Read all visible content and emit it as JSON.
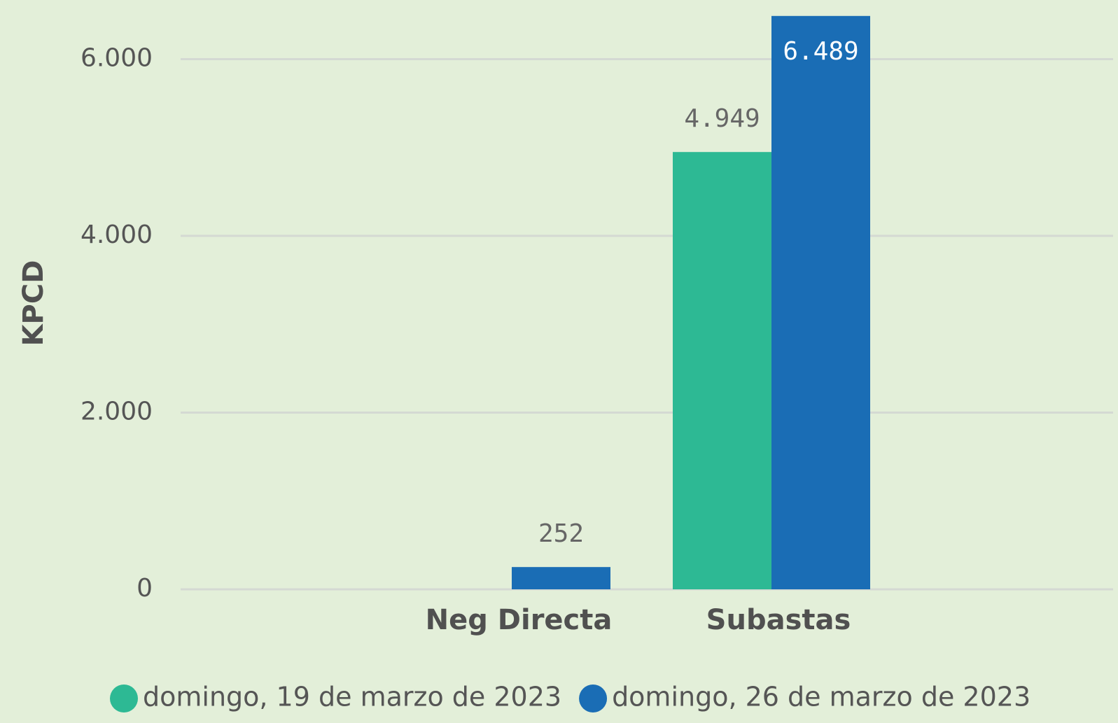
{
  "chart_data": {
    "type": "bar",
    "y_label": "KPCD",
    "categories": [
      "Neg Directa",
      "Subastas"
    ],
    "series": [
      {
        "name": "domingo, 19 de marzo de 2023",
        "color": "#2db994",
        "values": [
          null,
          4949
        ],
        "value_labels": [
          null,
          "4.949"
        ]
      },
      {
        "name": "domingo, 26 de marzo de 2023",
        "color": "#1a6db5",
        "values": [
          252,
          6489
        ],
        "value_labels": [
          "252",
          "6.489"
        ]
      }
    ],
    "ylim": [
      0,
      6500
    ],
    "yticks": [
      0,
      {
        "value": 2000,
        "label": "2.000"
      },
      {
        "value": 4000,
        "label": "4.000"
      },
      {
        "value": 6000,
        "label": "6.000"
      }
    ],
    "grid": true,
    "legend": "bottom"
  }
}
